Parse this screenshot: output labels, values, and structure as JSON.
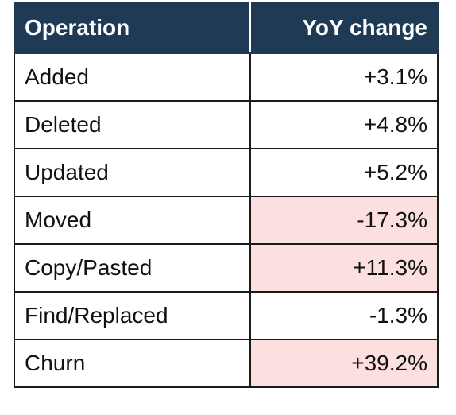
{
  "table": {
    "headers": {
      "operation": "Operation",
      "yoy": "YoY change"
    },
    "highlight_color": "#fce0df",
    "header_color": "#1f3a55",
    "rows": [
      {
        "operation": "Added",
        "yoy": "+3.1%",
        "highlighted": false
      },
      {
        "operation": "Deleted",
        "yoy": "+4.8%",
        "highlighted": false
      },
      {
        "operation": "Updated",
        "yoy": "+5.2%",
        "highlighted": false
      },
      {
        "operation": "Moved",
        "yoy": "-17.3%",
        "highlighted": true
      },
      {
        "operation": "Copy/Pasted",
        "yoy": "+11.3%",
        "highlighted": true
      },
      {
        "operation": "Find/Replaced",
        "yoy": "-1.3%",
        "highlighted": false
      },
      {
        "operation": "Churn",
        "yoy": "+39.2%",
        "highlighted": true
      }
    ]
  }
}
